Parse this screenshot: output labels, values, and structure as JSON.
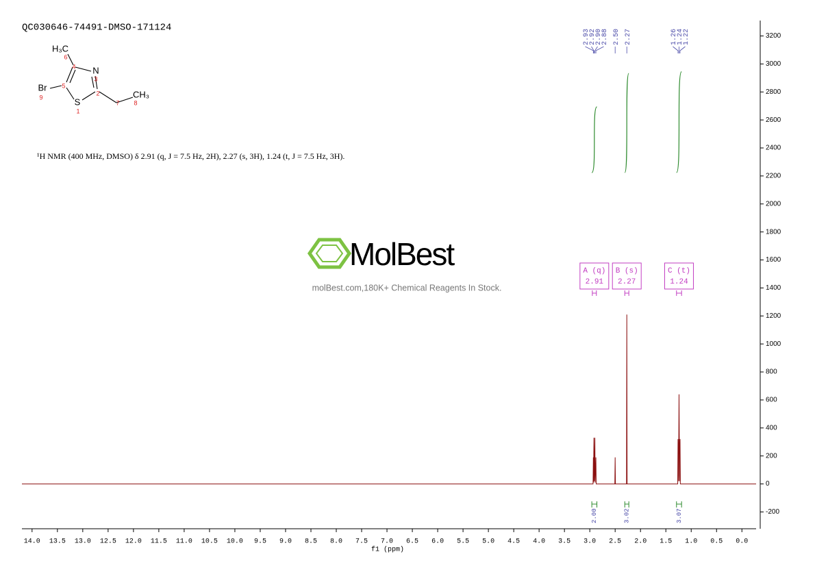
{
  "chart_data": {
    "type": "nmr",
    "title": "QC030646-74491-DMSO-171124",
    "x_label": "f1 (ppm)",
    "xlim": [
      14.2,
      -0.28
    ],
    "xticks": [
      {
        "value": 14,
        "label": "14.0"
      },
      {
        "value": 13.5,
        "label": "13.5"
      },
      {
        "value": 13,
        "label": "13.0"
      },
      {
        "value": 12.5,
        "label": "12.5"
      },
      {
        "value": 12,
        "label": "12.0"
      },
      {
        "value": 11.5,
        "label": "11.5"
      },
      {
        "value": 11,
        "label": "11.0"
      },
      {
        "value": 10.5,
        "label": "10.5"
      },
      {
        "value": 10,
        "label": "10.0"
      },
      {
        "value": 9.5,
        "label": "9.5"
      },
      {
        "value": 9,
        "label": "9.0"
      },
      {
        "value": 8.5,
        "label": "8.5"
      },
      {
        "value": 8,
        "label": "8.0"
      },
      {
        "value": 7.5,
        "label": "7.5"
      },
      {
        "value": 7,
        "label": "7.0"
      },
      {
        "value": 6.5,
        "label": "6.5"
      },
      {
        "value": 6,
        "label": "6.0"
      },
      {
        "value": 5.5,
        "label": "5.5"
      },
      {
        "value": 5,
        "label": "5.0"
      },
      {
        "value": 4.5,
        "label": "4.5"
      },
      {
        "value": 4,
        "label": "4.0"
      },
      {
        "value": 3.5,
        "label": "3.5"
      },
      {
        "value": 3,
        "label": "3.0"
      },
      {
        "value": 2.5,
        "label": "2.5"
      },
      {
        "value": 2,
        "label": "2.0"
      },
      {
        "value": 1.5,
        "label": "1.5"
      },
      {
        "value": 1,
        "label": "1.0"
      },
      {
        "value": 0.5,
        "label": "0.5"
      },
      {
        "value": 0,
        "label": "0.0"
      }
    ],
    "ylim": [
      -320,
      3310
    ],
    "yticks": [
      -200,
      0,
      200,
      400,
      600,
      800,
      1000,
      1200,
      1400,
      1600,
      1800,
      2000,
      2200,
      2400,
      2600,
      2800,
      3000,
      3200
    ],
    "color": "#8b1010",
    "x": [
      14.2,
      2.95,
      2.936,
      2.93,
      2.925,
      2.92,
      2.91,
      2.9,
      2.894,
      2.88,
      2.874,
      2.55,
      2.506,
      2.5,
      2.494,
      2.3,
      2.276,
      2.27,
      2.264,
      1.3,
      1.266,
      1.26,
      1.25,
      1.24,
      1.23,
      1.22,
      1.214,
      -0.28
    ],
    "values": [
      0,
      0,
      0,
      190,
      10,
      330,
      20,
      330,
      10,
      190,
      0,
      0,
      0,
      190,
      0,
      0,
      0,
      1210,
      0,
      0,
      0,
      320,
      20,
      640,
      20,
      320,
      0,
      0
    ],
    "peak_labels": {
      "values": [
        2.93,
        2.92,
        2.9,
        2.88,
        2.5,
        2.27,
        1.26,
        1.24,
        1.22
      ],
      "value_labels": [
        "2.93",
        "2.92",
        "2.90",
        "2.88",
        "2.50",
        "2.27",
        "1.26",
        "1.24",
        "1.22"
      ],
      "color": "#4a4aa8"
    },
    "multiplets": {
      "names": [
        "A (q)",
        "B (s)",
        "C (t)"
      ],
      "shifts": [
        2.91,
        2.27,
        1.24
      ],
      "ranges": [
        [
          2.95,
          2.87
        ],
        [
          2.31,
          2.23
        ],
        [
          1.29,
          1.19
        ]
      ],
      "color": "#c23cc2"
    },
    "integrals": {
      "ranges": [
        [
          2.96,
          2.86
        ],
        [
          2.31,
          2.23
        ],
        [
          1.29,
          1.19
        ]
      ],
      "values": [
        2,
        3.02,
        3.07
      ],
      "value_labels": [
        "2.00",
        "3.02",
        "3.07"
      ],
      "color": "#2e8b2e"
    }
  },
  "structure": {
    "atoms": [
      {
        "label": "H₃C",
        "number": "6"
      },
      {
        "label": "N",
        "number": "3"
      },
      {
        "label": "Br",
        "number": "9"
      },
      {
        "label": "S",
        "number": "1"
      },
      {
        "label": "CH₃",
        "number": "8"
      }
    ],
    "carbon_numbers": [
      "4",
      "5",
      "2",
      "7"
    ]
  },
  "description": "¹H NMR (400 MHz, DMSO) δ 2.91 (q, J = 7.5 Hz, 2H), 2.27 (s, 3H), 1.24 (t, J = 7.5 Hz, 3H).",
  "watermark": {
    "brand": "MolBest",
    "tagline": "molBest.com,180K+ Chemical Reagents In Stock."
  }
}
